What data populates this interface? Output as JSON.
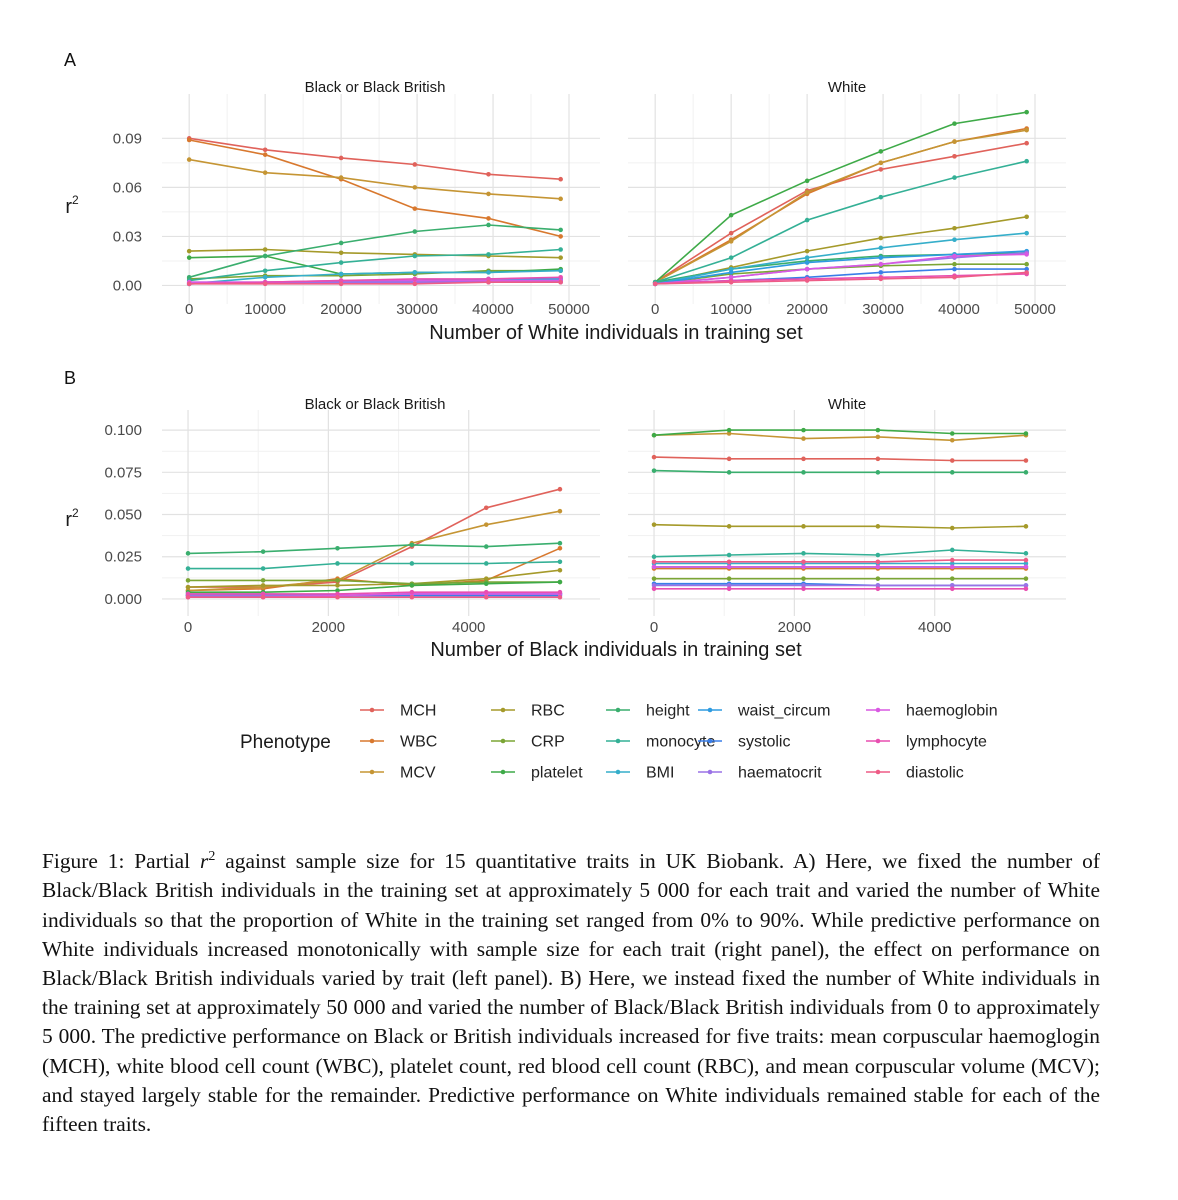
{
  "figure": {
    "legend_title": "Phenotype",
    "phenotypes": [
      {
        "name": "MCH",
        "color": "#E0625B"
      },
      {
        "name": "WBC",
        "color": "#D8782E"
      },
      {
        "name": "MCV",
        "color": "#C59534"
      },
      {
        "name": "RBC",
        "color": "#A59A2A"
      },
      {
        "name": "CRP",
        "color": "#7BA535"
      },
      {
        "name": "platelet",
        "color": "#3EAA48"
      },
      {
        "name": "height",
        "color": "#3AAE6E"
      },
      {
        "name": "monocyte",
        "color": "#34B096"
      },
      {
        "name": "BMI",
        "color": "#35AECA"
      },
      {
        "name": "waist_circum",
        "color": "#2E9BE0"
      },
      {
        "name": "systolic",
        "color": "#3A7EE8"
      },
      {
        "name": "haematocrit",
        "color": "#9A72E6"
      },
      {
        "name": "haemoglobin",
        "color": "#D959E2"
      },
      {
        "name": "lymphocyte",
        "color": "#E84FB1"
      },
      {
        "name": "diastolic",
        "color": "#EE5C86"
      }
    ]
  },
  "chart_data": [
    {
      "panel_label": "A",
      "type": "line",
      "facets": [
        "Black or Black British",
        "White"
      ],
      "xlabel": "Number of White individuals in training set",
      "ylabel": "r",
      "ylabel_sup": "2",
      "xlim": [
        -2000,
        52500
      ],
      "ylim": [
        -0.004,
        0.111
      ],
      "x_ticks": [
        0,
        10000,
        20000,
        30000,
        40000,
        50000
      ],
      "y_ticks": [
        "0.00",
        "0.03",
        "0.06",
        "0.09"
      ],
      "y_tick_values": [
        0,
        0.03,
        0.06,
        0.09
      ],
      "x": [
        0,
        10000,
        20000,
        29700,
        39400,
        48900
      ],
      "series": {
        "Black or Black British": [
          {
            "name": "MCH",
            "values": [
              0.09,
              0.083,
              0.078,
              0.074,
              0.068,
              0.065
            ]
          },
          {
            "name": "WBC",
            "values": [
              0.089,
              0.08,
              0.065,
              0.047,
              0.041,
              0.03
            ]
          },
          {
            "name": "MCV",
            "values": [
              0.077,
              0.069,
              0.066,
              0.06,
              0.056,
              0.053
            ]
          },
          {
            "name": "RBC",
            "values": [
              0.021,
              0.022,
              0.02,
              0.019,
              0.018,
              0.017
            ]
          },
          {
            "name": "CRP",
            "values": [
              0.004,
              0.006,
              0.006,
              0.007,
              0.009,
              0.009
            ]
          },
          {
            "name": "platelet",
            "values": [
              0.017,
              0.018,
              0.007,
              0.008,
              0.008,
              0.01
            ]
          },
          {
            "name": "height",
            "values": [
              0.005,
              0.018,
              0.026,
              0.033,
              0.037,
              0.034
            ]
          },
          {
            "name": "monocyte",
            "values": [
              0.003,
              0.009,
              0.014,
              0.018,
              0.019,
              0.022
            ]
          },
          {
            "name": "BMI",
            "values": [
              0.001,
              0.005,
              0.007,
              0.008,
              0.008,
              0.009
            ]
          },
          {
            "name": "waist_circum",
            "values": [
              0.001,
              0.002,
              0.002,
              0.003,
              0.004,
              0.004
            ]
          },
          {
            "name": "systolic",
            "values": [
              0.001,
              0.002,
              0.002,
              0.002,
              0.003,
              0.003
            ]
          },
          {
            "name": "haematocrit",
            "values": [
              0.002,
              0.002,
              0.002,
              0.002,
              0.002,
              0.002
            ]
          },
          {
            "name": "haemoglobin",
            "values": [
              0.002,
              0.002,
              0.003,
              0.003,
              0.003,
              0.003
            ]
          },
          {
            "name": "lymphocyte",
            "values": [
              0.001,
              0.002,
              0.003,
              0.004,
              0.004,
              0.005
            ]
          },
          {
            "name": "diastolic",
            "values": [
              0.001,
              0.001,
              0.001,
              0.001,
              0.002,
              0.002
            ]
          }
        ],
        "White": [
          {
            "name": "MCH",
            "values": [
              0.002,
              0.032,
              0.058,
              0.071,
              0.079,
              0.087
            ]
          },
          {
            "name": "WBC",
            "values": [
              0.002,
              0.028,
              0.056,
              0.075,
              0.088,
              0.096
            ]
          },
          {
            "name": "MCV",
            "values": [
              0.002,
              0.027,
              0.057,
              0.075,
              0.088,
              0.095
            ]
          },
          {
            "name": "RBC",
            "values": [
              0.001,
              0.011,
              0.021,
              0.029,
              0.035,
              0.042
            ]
          },
          {
            "name": "CRP",
            "values": [
              0.001,
              0.007,
              0.01,
              0.012,
              0.013,
              0.013
            ]
          },
          {
            "name": "platelet",
            "values": [
              0.002,
              0.043,
              0.064,
              0.082,
              0.099,
              0.106
            ]
          },
          {
            "name": "height",
            "values": [
              0.002,
              0.01,
              0.015,
              0.018,
              0.019,
              0.02
            ]
          },
          {
            "name": "monocyte",
            "values": [
              0.002,
              0.017,
              0.04,
              0.054,
              0.066,
              0.076
            ]
          },
          {
            "name": "BMI",
            "values": [
              0.001,
              0.01,
              0.017,
              0.023,
              0.028,
              0.032
            ]
          },
          {
            "name": "waist_circum",
            "values": [
              0.001,
              0.008,
              0.014,
              0.017,
              0.019,
              0.021
            ]
          },
          {
            "name": "systolic",
            "values": [
              0.001,
              0.003,
              0.005,
              0.008,
              0.01,
              0.01
            ]
          },
          {
            "name": "haematocrit",
            "values": [
              0.001,
              0.005,
              0.01,
              0.013,
              0.017,
              0.02
            ]
          },
          {
            "name": "haemoglobin",
            "values": [
              0.001,
              0.005,
              0.01,
              0.013,
              0.018,
              0.019
            ]
          },
          {
            "name": "lymphocyte",
            "values": [
              0.001,
              0.003,
              0.004,
              0.005,
              0.006,
              0.007
            ]
          },
          {
            "name": "diastolic",
            "values": [
              0.001,
              0.002,
              0.003,
              0.004,
              0.005,
              0.008
            ]
          }
        ]
      }
    },
    {
      "panel_label": "B",
      "type": "line",
      "facets": [
        "Black or Black British",
        "White"
      ],
      "xlabel": "Number of Black individuals in training set",
      "ylabel": "r",
      "ylabel_sup": "2",
      "xlim": [
        -200,
        5700
      ],
      "ylim": [
        -0.003,
        0.106
      ],
      "x_ticks": [
        0,
        2000,
        4000
      ],
      "y_ticks": [
        "0.000",
        "0.025",
        "0.050",
        "0.075",
        "0.100"
      ],
      "y_tick_values": [
        0,
        0.025,
        0.05,
        0.075,
        0.1
      ],
      "x": [
        0,
        1070,
        2130,
        3190,
        4250,
        5300
      ],
      "series": {
        "Black or Black British": [
          {
            "name": "MCH",
            "values": [
              0.007,
              0.007,
              0.01,
              0.031,
              0.054,
              0.065
            ]
          },
          {
            "name": "WBC",
            "values": [
              0.005,
              0.006,
              0.012,
              0.008,
              0.011,
              0.03
            ]
          },
          {
            "name": "MCV",
            "values": [
              0.005,
              0.007,
              0.011,
              0.033,
              0.044,
              0.052
            ]
          },
          {
            "name": "RBC",
            "values": [
              0.007,
              0.008,
              0.008,
              0.009,
              0.012,
              0.017
            ]
          },
          {
            "name": "CRP",
            "values": [
              0.011,
              0.011,
              0.011,
              0.009,
              0.01,
              0.01
            ]
          },
          {
            "name": "platelet",
            "values": [
              0.004,
              0.004,
              0.005,
              0.008,
              0.009,
              0.01
            ]
          },
          {
            "name": "height",
            "values": [
              0.027,
              0.028,
              0.03,
              0.032,
              0.031,
              0.033
            ]
          },
          {
            "name": "monocyte",
            "values": [
              0.018,
              0.018,
              0.021,
              0.021,
              0.021,
              0.022
            ]
          },
          {
            "name": "BMI",
            "values": [
              0.003,
              0.003,
              0.002,
              0.003,
              0.003,
              0.003
            ]
          },
          {
            "name": "waist_circum",
            "values": [
              0.002,
              0.002,
              0.002,
              0.003,
              0.003,
              0.003
            ]
          },
          {
            "name": "systolic",
            "values": [
              0.002,
              0.002,
              0.002,
              0.002,
              0.002,
              0.002
            ]
          },
          {
            "name": "haematocrit",
            "values": [
              0.002,
              0.002,
              0.002,
              0.003,
              0.003,
              0.003
            ]
          },
          {
            "name": "haemoglobin",
            "values": [
              0.001,
              0.001,
              0.002,
              0.003,
              0.003,
              0.003
            ]
          },
          {
            "name": "lymphocyte",
            "values": [
              0.003,
              0.003,
              0.003,
              0.004,
              0.004,
              0.004
            ]
          },
          {
            "name": "diastolic",
            "values": [
              0.001,
              0.001,
              0.001,
              0.001,
              0.001,
              0.001
            ]
          }
        ],
        "White": [
          {
            "name": "MCH",
            "values": [
              0.084,
              0.083,
              0.083,
              0.083,
              0.082,
              0.082
            ]
          },
          {
            "name": "WBC",
            "values": [
              0.018,
              0.018,
              0.018,
              0.018,
              0.018,
              0.018
            ]
          },
          {
            "name": "MCV",
            "values": [
              0.097,
              0.098,
              0.095,
              0.096,
              0.094,
              0.097
            ]
          },
          {
            "name": "RBC",
            "values": [
              0.044,
              0.043,
              0.043,
              0.043,
              0.042,
              0.043
            ]
          },
          {
            "name": "CRP",
            "values": [
              0.012,
              0.012,
              0.012,
              0.012,
              0.012,
              0.012
            ]
          },
          {
            "name": "platelet",
            "values": [
              0.097,
              0.1,
              0.1,
              0.1,
              0.098,
              0.098
            ]
          },
          {
            "name": "height",
            "values": [
              0.076,
              0.075,
              0.075,
              0.075,
              0.075,
              0.075
            ]
          },
          {
            "name": "monocyte",
            "values": [
              0.025,
              0.026,
              0.027,
              0.026,
              0.029,
              0.027
            ]
          },
          {
            "name": "BMI",
            "values": [
              0.021,
              0.021,
              0.021,
              0.021,
              0.021,
              0.021
            ]
          },
          {
            "name": "waist_circum",
            "values": [
              0.019,
              0.019,
              0.019,
              0.019,
              0.019,
              0.019
            ]
          },
          {
            "name": "systolic",
            "values": [
              0.009,
              0.009,
              0.009,
              0.008,
              0.008,
              0.008
            ]
          },
          {
            "name": "haematocrit",
            "values": [
              0.008,
              0.008,
              0.008,
              0.008,
              0.008,
              0.008
            ]
          },
          {
            "name": "haemoglobin",
            "values": [
              0.019,
              0.019,
              0.019,
              0.019,
              0.019,
              0.019
            ]
          },
          {
            "name": "lymphocyte",
            "values": [
              0.006,
              0.006,
              0.006,
              0.006,
              0.006,
              0.006
            ]
          },
          {
            "name": "diastolic",
            "values": [
              0.022,
              0.022,
              0.022,
              0.022,
              0.023,
              0.023
            ]
          }
        ]
      }
    }
  ],
  "caption": {
    "part1": "Figure 1: Partial ",
    "r": "r",
    "sup": "2",
    "part2": " against sample size for 15 quantitative traits in UK Biobank. A) Here, we fixed the number of Black/Black British individuals in the training set at approximately 5 000 for each trait and varied the number of White individuals so that the proportion of White in the training set ranged from 0% to 90%. While predictive performance on White individuals increased monotonically with sample size for each trait (right panel), the effect on performance on Black/Black British individuals varied by trait (left panel). B) Here, we instead fixed the number of White individuals in the training set at approximately 50 000 and varied the number of Black/Black British individuals from 0 to approximately 5 000. The predictive performance on Black or British individuals increased for five traits: mean corpuscular haemoglogin (MCH), white blood cell count (WBC), platelet count, red blood cell count (RBC), and mean corpuscular volume (MCV); and stayed largely stable for the remainder. Predictive performance on White individuals remained stable for each of the fifteen traits."
  }
}
